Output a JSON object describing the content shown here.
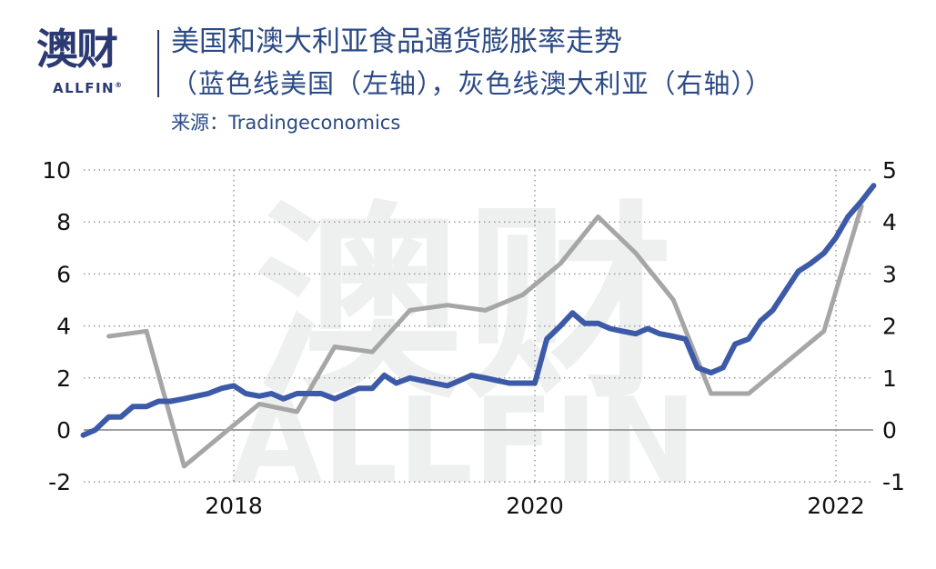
{
  "header": {
    "logo_cn": "澳财",
    "logo_en": "ALLFIN",
    "logo_reg": "®",
    "title": "美国和澳大利亚食品通货膨胀率走势",
    "subtitle": "（蓝色线美国（左轴），灰色线澳大利亚（右轴））",
    "source": "来源：Tradingeconomics"
  },
  "watermark": {
    "cn": "澳财",
    "en": "ALLFIN"
  },
  "colors": {
    "us": "#3d5aa8",
    "australia": "#a6a6a6",
    "text": "#2b4a86",
    "grid": "#b0b0b0"
  },
  "chart_data": {
    "type": "line",
    "title": "美国和澳大利亚食品通货膨胀率走势",
    "subtitle": "（蓝色线美国（左轴），灰色线澳大利亚（右轴））",
    "source": "Tradingeconomics",
    "xlabel": "",
    "ylabel_left": "",
    "ylabel_right": "",
    "x_ticks": [
      "2018",
      "2020",
      "2022"
    ],
    "y_left_ticks": [
      "-2",
      "0",
      "2",
      "4",
      "6",
      "8",
      "10"
    ],
    "y_right_ticks": [
      "-1",
      "0",
      "1",
      "2",
      "3",
      "4",
      "5"
    ],
    "ylim_left": [
      -2,
      10
    ],
    "ylim_right": [
      -1,
      5
    ],
    "xlim": [
      2017.0,
      2022.3
    ],
    "grid": true,
    "legend": "none (described in subtitle)",
    "series": [
      {
        "name": "美国 (US) - 左轴",
        "axis": "left",
        "color": "#3d5aa8",
        "x": [
          2017.0,
          2017.08,
          2017.17,
          2017.25,
          2017.33,
          2017.42,
          2017.5,
          2017.58,
          2017.67,
          2017.75,
          2017.83,
          2017.92,
          2018.0,
          2018.08,
          2018.17,
          2018.25,
          2018.33,
          2018.42,
          2018.5,
          2018.58,
          2018.67,
          2018.75,
          2018.83,
          2018.92,
          2019.0,
          2019.08,
          2019.17,
          2019.25,
          2019.33,
          2019.42,
          2019.5,
          2019.58,
          2019.67,
          2019.75,
          2019.83,
          2019.92,
          2020.0,
          2020.08,
          2020.17,
          2020.25,
          2020.33,
          2020.42,
          2020.5,
          2020.58,
          2020.67,
          2020.75,
          2020.83,
          2020.92,
          2021.0,
          2021.08,
          2021.17,
          2021.25,
          2021.33,
          2021.42,
          2021.5,
          2021.58,
          2021.67,
          2021.75,
          2021.83,
          2021.92,
          2022.0,
          2022.08,
          2022.17,
          2022.25
        ],
        "values": [
          -0.2,
          0.0,
          0.5,
          0.5,
          0.9,
          0.9,
          1.1,
          1.1,
          1.2,
          1.3,
          1.4,
          1.6,
          1.7,
          1.4,
          1.3,
          1.4,
          1.2,
          1.4,
          1.4,
          1.4,
          1.2,
          1.4,
          1.6,
          1.6,
          2.1,
          1.8,
          2.0,
          1.9,
          1.8,
          1.7,
          1.9,
          2.1,
          2.0,
          1.9,
          1.8,
          1.8,
          1.8,
          3.5,
          4.0,
          4.5,
          4.1,
          4.1,
          3.9,
          3.8,
          3.7,
          3.9,
          3.7,
          3.6,
          3.5,
          2.4,
          2.2,
          2.4,
          3.3,
          3.5,
          4.2,
          4.6,
          5.4,
          6.1,
          6.4,
          6.8,
          7.4,
          8.2,
          8.8,
          9.4
        ]
      },
      {
        "name": "澳大利亚 (Australia) - 右轴",
        "axis": "right",
        "color": "#a6a6a6",
        "x": [
          2017.17,
          2017.42,
          2017.67,
          2017.92,
          2018.17,
          2018.42,
          2018.67,
          2018.92,
          2019.17,
          2019.42,
          2019.67,
          2019.92,
          2020.17,
          2020.42,
          2020.67,
          2020.92,
          2021.17,
          2021.42,
          2021.67,
          2021.92,
          2022.17
        ],
        "values": [
          1.8,
          1.9,
          -0.7,
          -0.1,
          0.5,
          0.35,
          1.6,
          1.5,
          2.3,
          2.4,
          2.3,
          2.6,
          3.2,
          4.1,
          3.4,
          2.5,
          0.7,
          0.7,
          1.3,
          1.9,
          4.3
        ]
      }
    ]
  }
}
